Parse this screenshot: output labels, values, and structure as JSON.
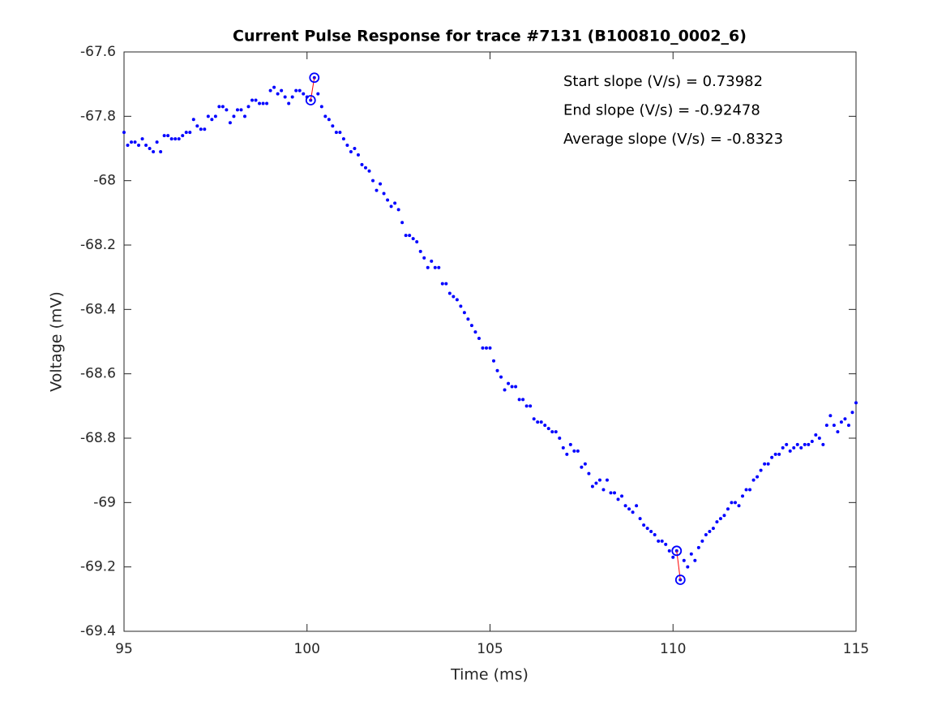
{
  "chart_data": {
    "type": "scatter",
    "title": "Current Pulse Response for trace #7131 (B100810_0002_6)",
    "xlabel": "Time (ms)",
    "ylabel": "Voltage (mV)",
    "xlim": [
      95,
      115
    ],
    "ylim": [
      -69.4,
      -67.6
    ],
    "xticks": [
      95,
      100,
      105,
      110,
      115
    ],
    "yticks": [
      -67.6,
      -67.8,
      -68,
      -68.2,
      -68.4,
      -68.6,
      -68.8,
      -69,
      -69.2,
      -69.4
    ],
    "series": [
      {
        "color": "#0000ff",
        "x": [
          95.0,
          95.1,
          95.2,
          95.3,
          95.4,
          95.5,
          95.6,
          95.7,
          95.8,
          95.9,
          96.0,
          96.1,
          96.2,
          96.3,
          96.4,
          96.5,
          96.6,
          96.7,
          96.8,
          96.9,
          97.0,
          97.1,
          97.2,
          97.3,
          97.4,
          97.5,
          97.6,
          97.7,
          97.8,
          97.9,
          98.0,
          98.1,
          98.2,
          98.3,
          98.4,
          98.5,
          98.6,
          98.7,
          98.8,
          98.9,
          99.0,
          99.1,
          99.2,
          99.3,
          99.4,
          99.5,
          99.6,
          99.7,
          99.8,
          99.9,
          100.0,
          100.1,
          100.2,
          100.3,
          100.4,
          100.5,
          100.6,
          100.7,
          100.8,
          100.9,
          101.0,
          101.1,
          101.2,
          101.3,
          101.4,
          101.5,
          101.6,
          101.7,
          101.8,
          101.9,
          102.0,
          102.1,
          102.2,
          102.3,
          102.4,
          102.5,
          102.6,
          102.7,
          102.8,
          102.9,
          103.0,
          103.1,
          103.2,
          103.3,
          103.4,
          103.5,
          103.6,
          103.7,
          103.8,
          103.9,
          104.0,
          104.1,
          104.2,
          104.3,
          104.4,
          104.5,
          104.6,
          104.7,
          104.8,
          104.9,
          105.0,
          105.1,
          105.2,
          105.3,
          105.4,
          105.5,
          105.6,
          105.7,
          105.8,
          105.9,
          106.0,
          106.1,
          106.2,
          106.3,
          106.4,
          106.5,
          106.6,
          106.7,
          106.8,
          106.9,
          107.0,
          107.1,
          107.2,
          107.3,
          107.4,
          107.5,
          107.6,
          107.7,
          107.8,
          107.9,
          108.0,
          108.1,
          108.2,
          108.3,
          108.4,
          108.5,
          108.6,
          108.7,
          108.8,
          108.9,
          109.0,
          109.1,
          109.2,
          109.3,
          109.4,
          109.5,
          109.6,
          109.7,
          109.8,
          109.9,
          110.0,
          110.1,
          110.2,
          110.3,
          110.4,
          110.5,
          110.6,
          110.7,
          110.8,
          110.9,
          111.0,
          111.1,
          111.2,
          111.3,
          111.4,
          111.5,
          111.6,
          111.7,
          111.8,
          111.9,
          112.0,
          112.1,
          112.2,
          112.3,
          112.4,
          112.5,
          112.6,
          112.7,
          112.8,
          112.9,
          113.0,
          113.1,
          113.2,
          113.3,
          113.4,
          113.5,
          113.6,
          113.7,
          113.8,
          113.9,
          114.0,
          114.1,
          114.2,
          114.3,
          114.4,
          114.5,
          114.6,
          114.7,
          114.8,
          114.9,
          115.0
        ],
        "values": [
          -67.85,
          -67.89,
          -67.88,
          -67.88,
          -67.89,
          -67.87,
          -67.89,
          -67.9,
          -67.91,
          -67.88,
          -67.91,
          -67.86,
          -67.86,
          -67.87,
          -67.87,
          -67.87,
          -67.86,
          -67.85,
          -67.85,
          -67.81,
          -67.83,
          -67.84,
          -67.84,
          -67.8,
          -67.81,
          -67.8,
          -67.77,
          -67.77,
          -67.78,
          -67.82,
          -67.8,
          -67.78,
          -67.78,
          -67.8,
          -67.77,
          -67.75,
          -67.75,
          -67.76,
          -67.76,
          -67.76,
          -67.72,
          -67.71,
          -67.73,
          -67.72,
          -67.74,
          -67.76,
          -67.74,
          -67.72,
          -67.72,
          -67.73,
          -67.74,
          -67.75,
          -67.68,
          -67.73,
          -67.77,
          -67.8,
          -67.81,
          -67.83,
          -67.85,
          -67.85,
          -67.87,
          -67.89,
          -67.91,
          -67.9,
          -67.92,
          -67.95,
          -67.96,
          -67.97,
          -68.0,
          -68.03,
          -68.01,
          -68.04,
          -68.06,
          -68.08,
          -68.07,
          -68.09,
          -68.13,
          -68.17,
          -68.17,
          -68.18,
          -68.19,
          -68.22,
          -68.24,
          -68.27,
          -68.25,
          -68.27,
          -68.27,
          -68.32,
          -68.32,
          -68.35,
          -68.36,
          -68.37,
          -68.39,
          -68.41,
          -68.43,
          -68.45,
          -68.47,
          -68.49,
          -68.52,
          -68.52,
          -68.52,
          -68.56,
          -68.59,
          -68.61,
          -68.65,
          -68.63,
          -68.64,
          -68.64,
          -68.68,
          -68.68,
          -68.7,
          -68.7,
          -68.74,
          -68.75,
          -68.75,
          -68.76,
          -68.77,
          -68.78,
          -68.78,
          -68.8,
          -68.83,
          -68.85,
          -68.82,
          -68.84,
          -68.84,
          -68.89,
          -68.88,
          -68.91,
          -68.95,
          -68.94,
          -68.93,
          -68.96,
          -68.93,
          -68.97,
          -68.97,
          -68.99,
          -68.98,
          -69.01,
          -69.02,
          -69.03,
          -69.01,
          -69.05,
          -69.07,
          -69.08,
          -69.09,
          -69.1,
          -69.12,
          -69.12,
          -69.13,
          -69.15,
          -69.17,
          -69.15,
          -69.24,
          -69.18,
          -69.2,
          -69.16,
          -69.18,
          -69.14,
          -69.12,
          -69.1,
          -69.09,
          -69.08,
          -69.06,
          -69.05,
          -69.04,
          -69.02,
          -69.0,
          -69.0,
          -69.01,
          -68.98,
          -68.96,
          -68.96,
          -68.93,
          -68.92,
          -68.9,
          -68.88,
          -68.88,
          -68.86,
          -68.85,
          -68.85,
          -68.83,
          -68.82,
          -68.84,
          -68.83,
          -68.82,
          -68.83,
          -68.82,
          -68.82,
          -68.81,
          -68.79,
          -68.8,
          -68.82,
          -68.76,
          -68.73,
          -68.76,
          -68.78,
          -68.75,
          -68.74,
          -68.76,
          -68.72,
          -68.69
        ]
      }
    ],
    "highlights": [
      {
        "color": "#0000ff",
        "line_color": "#ff0000",
        "x": [
          100.1,
          100.2
        ],
        "values": [
          -67.75,
          -67.68
        ]
      },
      {
        "color": "#0000ff",
        "line_color": "#ff0000",
        "x": [
          110.1,
          110.2
        ],
        "values": [
          -69.15,
          -69.24
        ]
      }
    ],
    "annotations": [
      "Start slope (V/s) = 0.73982",
      "End slope (V/s) = -0.92478",
      "Average slope (V/s) = -0.8323"
    ]
  }
}
